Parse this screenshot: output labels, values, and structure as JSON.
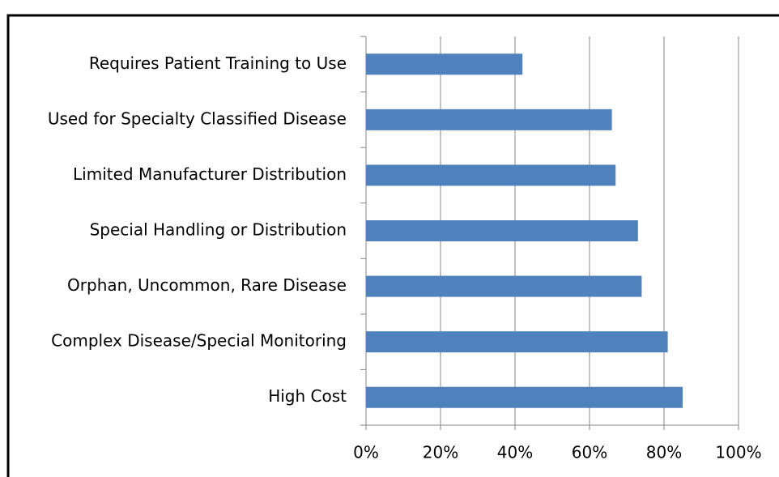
{
  "chart_data": {
    "type": "bar",
    "orientation": "horizontal",
    "categories": [
      "Requires Patient Training to Use",
      "Used for Specialty Classified Disease",
      "Limited Manufacturer Distribution",
      "Special Handling or Distribution",
      "Orphan, Uncommon, Rare Disease",
      "Complex Disease/Special Monitoring",
      "High Cost"
    ],
    "values": [
      42,
      66,
      67,
      73,
      74,
      81,
      85
    ],
    "color": "#4f81bd",
    "xlim": [
      0,
      100
    ],
    "xticks": [
      {
        "value": 0,
        "label": "0%"
      },
      {
        "value": 20,
        "label": "20%"
      },
      {
        "value": 40,
        "label": "40%"
      },
      {
        "value": 60,
        "label": "60%"
      },
      {
        "value": 80,
        "label": "80%"
      },
      {
        "value": 100,
        "label": "100%"
      }
    ],
    "grid": true
  }
}
